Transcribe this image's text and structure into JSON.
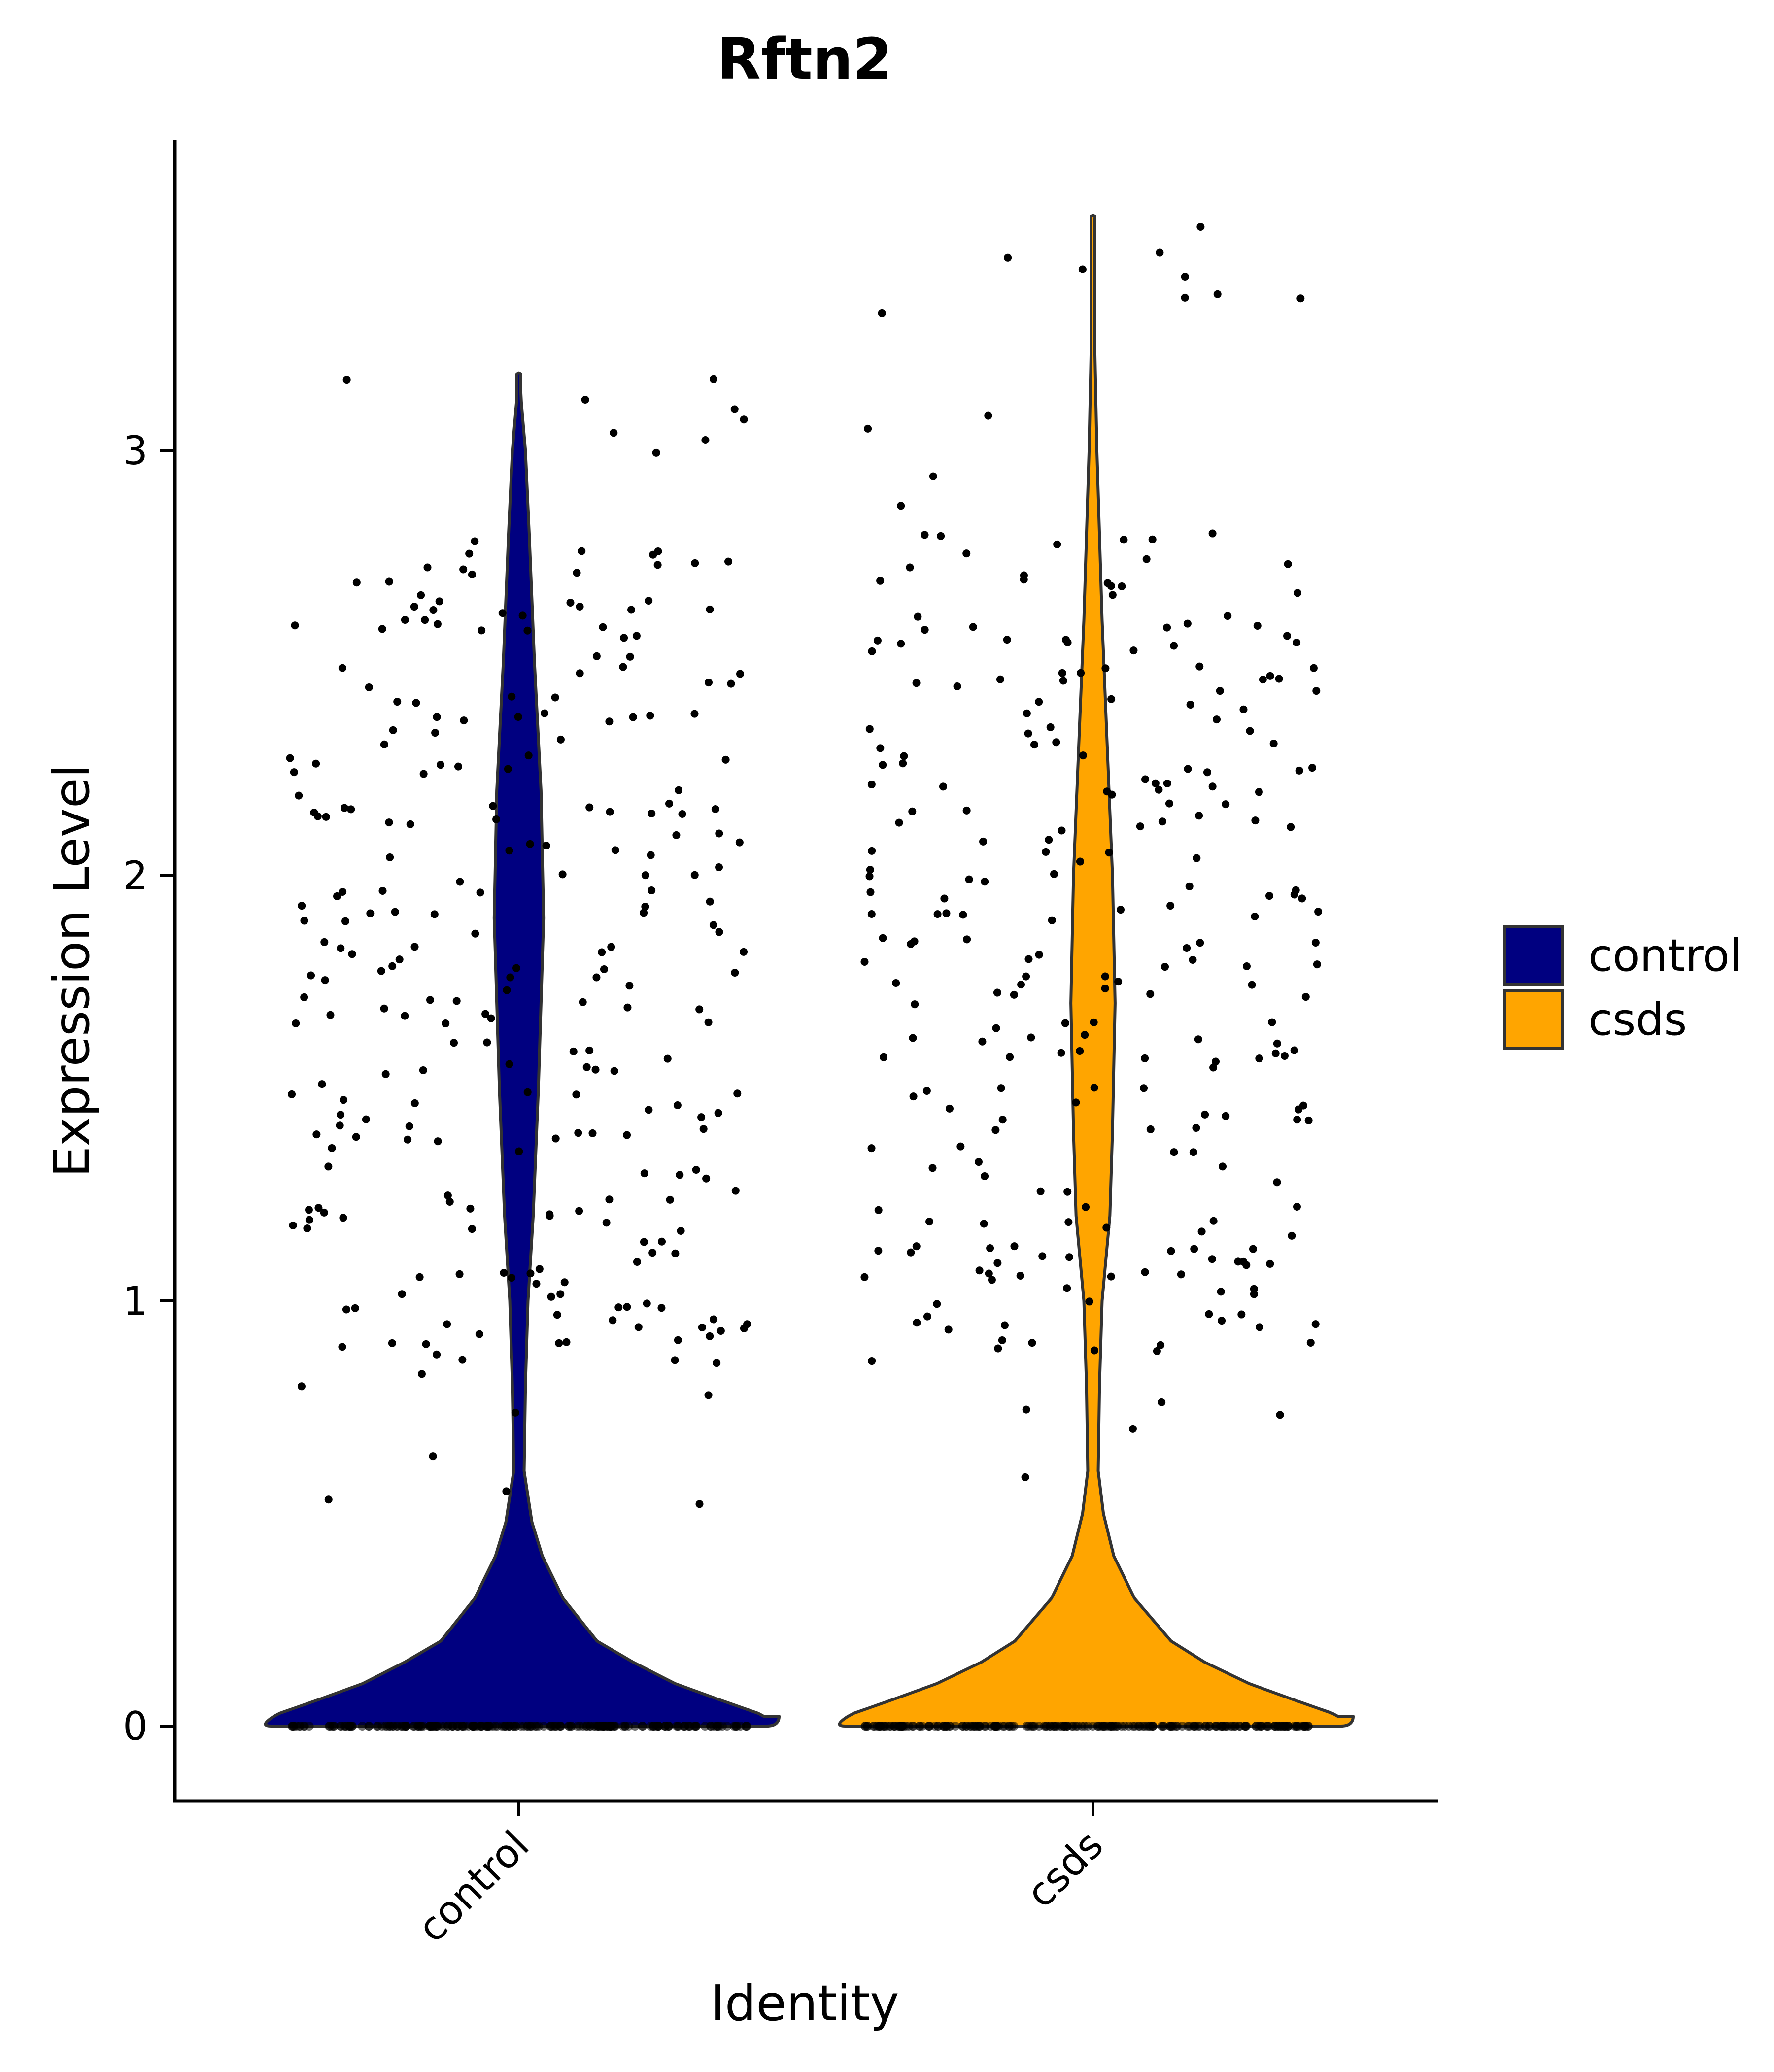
{
  "chart_data": {
    "type": "violin",
    "title": "Rftn2",
    "xlabel": "Identity",
    "ylabel": "Expression Level",
    "categories": [
      "control",
      "csds"
    ],
    "y_ticks": [
      0,
      1,
      2,
      3
    ],
    "y_tick_labels": [
      "0",
      "1",
      "2",
      "3"
    ],
    "ylim": [
      -0.18,
      3.6
    ],
    "grid": false,
    "legend_position": "right",
    "legend": [
      {
        "label": "control",
        "color": "#000080"
      },
      {
        "label": "csds",
        "color": "#FFA500"
      }
    ],
    "series": [
      {
        "name": "control",
        "color": "#000080",
        "max_value": 3.18,
        "fraction_zero": "majority",
        "nonzero_range": [
          0.5,
          3.18
        ],
        "nonzero_mode": 1.9,
        "outline_profile": [
          [
            0.0,
            1.0
          ],
          [
            0.01,
            0.98
          ],
          [
            0.03,
            0.92
          ],
          [
            0.06,
            0.78
          ],
          [
            0.1,
            0.6
          ],
          [
            0.15,
            0.44
          ],
          [
            0.2,
            0.3
          ],
          [
            0.3,
            0.17
          ],
          [
            0.4,
            0.09
          ],
          [
            0.48,
            0.05
          ],
          [
            0.6,
            0.02
          ],
          [
            0.8,
            0.025
          ],
          [
            1.0,
            0.035
          ],
          [
            1.2,
            0.055
          ],
          [
            1.5,
            0.075
          ],
          [
            1.9,
            0.095
          ],
          [
            2.2,
            0.085
          ],
          [
            2.5,
            0.06
          ],
          [
            2.8,
            0.04
          ],
          [
            3.0,
            0.025
          ],
          [
            3.18,
            0.0
          ]
        ]
      },
      {
        "name": "csds",
        "color": "#FFA500",
        "max_value": 3.55,
        "fraction_zero": "majority",
        "nonzero_range": [
          0.27,
          3.55
        ],
        "nonzero_mode": 1.7,
        "outline_profile": [
          [
            0.0,
            1.0
          ],
          [
            0.01,
            0.98
          ],
          [
            0.03,
            0.92
          ],
          [
            0.06,
            0.78
          ],
          [
            0.1,
            0.6
          ],
          [
            0.15,
            0.43
          ],
          [
            0.2,
            0.3
          ],
          [
            0.3,
            0.16
          ],
          [
            0.4,
            0.08
          ],
          [
            0.5,
            0.04
          ],
          [
            0.6,
            0.02
          ],
          [
            0.8,
            0.025
          ],
          [
            1.0,
            0.035
          ],
          [
            1.2,
            0.065
          ],
          [
            1.4,
            0.075
          ],
          [
            1.7,
            0.085
          ],
          [
            2.0,
            0.075
          ],
          [
            2.3,
            0.055
          ],
          [
            2.6,
            0.035
          ],
          [
            3.0,
            0.015
          ],
          [
            3.3,
            0.005
          ],
          [
            3.55,
            0.0
          ]
        ]
      }
    ]
  }
}
